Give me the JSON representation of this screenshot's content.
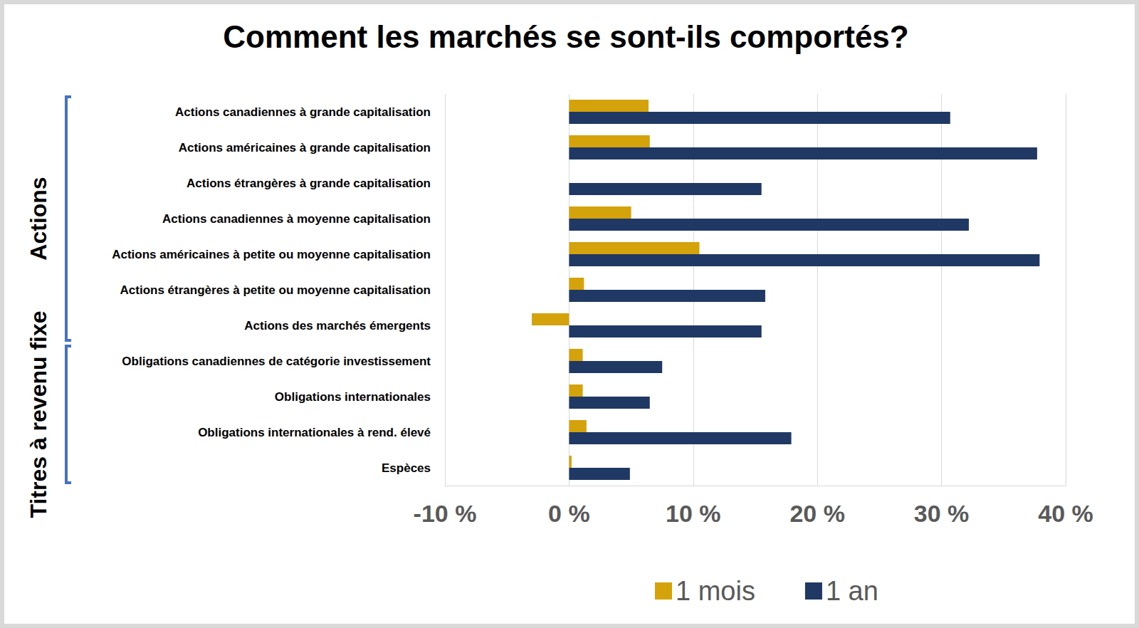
{
  "chart_data": {
    "type": "bar",
    "title": "Comment les marchés se sont-ils comportés?",
    "orientation": "horizontal",
    "categories": [
      "Actions canadiennes à grande capitalisation",
      "Actions américaines à grande capitalisation",
      "Actions étrangères à grande capitalisation",
      "Actions canadiennes à moyenne capitalisation",
      "Actions américaines à petite ou moyenne capitalisation",
      "Actions étrangères à petite ou moyenne capitalisation",
      "Actions des marchés émergents",
      "Obligations canadiennes de catégorie investissement",
      "Obligations internationales",
      "Obligations internationales à rend. élevé",
      "Espèces"
    ],
    "series": [
      {
        "name": "1 mois",
        "color": "#d4a20a",
        "values": [
          6.4,
          6.5,
          0.0,
          5.0,
          10.5,
          1.2,
          -3.0,
          1.1,
          1.1,
          1.4,
          0.2
        ]
      },
      {
        "name": "1 an",
        "color": "#1f3864",
        "values": [
          30.7,
          37.7,
          15.5,
          32.2,
          37.9,
          15.8,
          15.5,
          7.5,
          6.5,
          17.9,
          4.9
        ]
      }
    ],
    "groups": [
      {
        "label": "Actions",
        "start": 0,
        "end": 6
      },
      {
        "label": "Titres à revenu fixe",
        "start": 7,
        "end": 10
      }
    ],
    "xlim": [
      -10,
      40
    ],
    "xticks": [
      {
        "value": -10,
        "label": "-10 %"
      },
      {
        "value": 0,
        "label": "0 %"
      },
      {
        "value": 10,
        "label": "10 %"
      },
      {
        "value": 20,
        "label": "20 %"
      },
      {
        "value": 30,
        "label": "30 %"
      },
      {
        "value": 40,
        "label": "40 %"
      }
    ],
    "grid": true,
    "legend": "bottom"
  }
}
